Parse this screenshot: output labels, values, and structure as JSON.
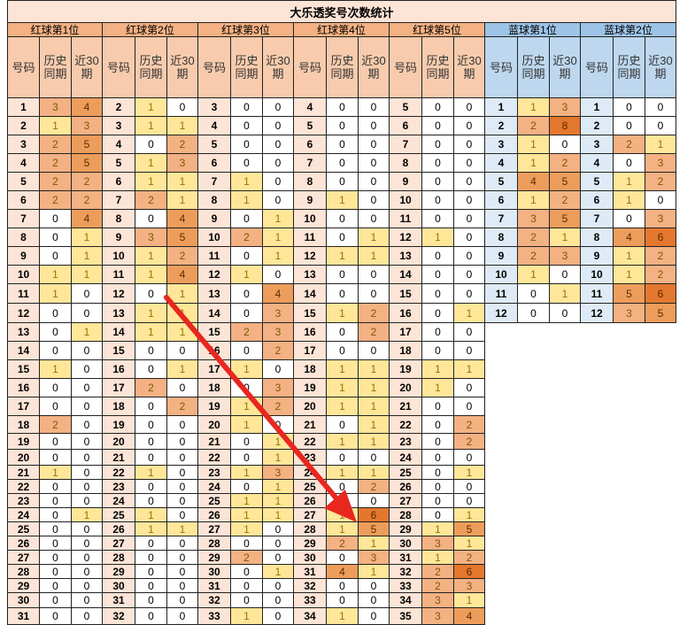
{
  "title": "大乐透奖号次数统计",
  "col_headers": {
    "num": "号码",
    "hist": "历史同期",
    "recent": "近30期"
  },
  "palette": {
    "0": "#ffffff",
    "1": "#ffe699",
    "2": "#f4b183",
    "3": "#f4b183",
    "4": "#ed9d5b",
    "5": "#ed9d5b",
    "6": "#e4772e",
    "8": "#e4772e"
  },
  "groups": [
    {
      "name": "红球第1位",
      "color": "red",
      "rows": [
        [
          "1",
          3,
          4
        ],
        [
          "2",
          1,
          3
        ],
        [
          "3",
          2,
          5
        ],
        [
          "4",
          2,
          5
        ],
        [
          "5",
          2,
          2
        ],
        [
          "6",
          2,
          2
        ],
        [
          "7",
          0,
          4
        ],
        [
          "8",
          0,
          1
        ],
        [
          "9",
          0,
          1
        ],
        [
          "10",
          1,
          1
        ],
        [
          "11",
          1,
          0
        ],
        [
          "12",
          0,
          0
        ],
        [
          "13",
          0,
          1
        ],
        [
          "14",
          0,
          0
        ],
        [
          "15",
          1,
          0
        ],
        [
          "16",
          0,
          0
        ],
        [
          "17",
          0,
          0
        ],
        [
          "18",
          2,
          0
        ],
        [
          "19",
          0,
          0
        ],
        [
          "20",
          0,
          0
        ],
        [
          "21",
          1,
          0
        ],
        [
          "22",
          0,
          0
        ],
        [
          "23",
          0,
          0
        ],
        [
          "24",
          0,
          1
        ],
        [
          "25",
          0,
          0
        ],
        [
          "26",
          0,
          0
        ],
        [
          "27",
          0,
          0
        ],
        [
          "28",
          0,
          0
        ],
        [
          "29",
          0,
          0
        ],
        [
          "30",
          0,
          0
        ],
        [
          "31",
          0,
          0
        ]
      ]
    },
    {
      "name": "红球第2位",
      "color": "red",
      "rows": [
        [
          "2",
          1,
          0
        ],
        [
          "3",
          1,
          1
        ],
        [
          "4",
          0,
          2
        ],
        [
          "5",
          1,
          3
        ],
        [
          "6",
          1,
          1
        ],
        [
          "7",
          2,
          1
        ],
        [
          "8",
          0,
          4
        ],
        [
          "9",
          3,
          5
        ],
        [
          "10",
          1,
          2
        ],
        [
          "11",
          1,
          4
        ],
        [
          "12",
          0,
          1
        ],
        [
          "13",
          1,
          1
        ],
        [
          "14",
          1,
          1
        ],
        [
          "15",
          0,
          0
        ],
        [
          "16",
          0,
          1
        ],
        [
          "17",
          2,
          0
        ],
        [
          "18",
          0,
          2
        ],
        [
          "19",
          0,
          0
        ],
        [
          "20",
          0,
          0
        ],
        [
          "21",
          0,
          0
        ],
        [
          "22",
          1,
          0
        ],
        [
          "23",
          0,
          0
        ],
        [
          "24",
          0,
          0
        ],
        [
          "25",
          1,
          0
        ],
        [
          "26",
          1,
          1
        ],
        [
          "27",
          0,
          0
        ],
        [
          "28",
          0,
          0
        ],
        [
          "29",
          0,
          0
        ],
        [
          "30",
          0,
          0
        ],
        [
          "31",
          0,
          0
        ],
        [
          "32",
          0,
          0
        ]
      ]
    },
    {
      "name": "红球第3位",
      "color": "red",
      "rows": [
        [
          "3",
          0,
          0
        ],
        [
          "4",
          0,
          0
        ],
        [
          "5",
          0,
          0
        ],
        [
          "6",
          0,
          0
        ],
        [
          "7",
          1,
          0
        ],
        [
          "8",
          1,
          0
        ],
        [
          "9",
          0,
          1
        ],
        [
          "10",
          2,
          1
        ],
        [
          "11",
          0,
          1
        ],
        [
          "12",
          1,
          0
        ],
        [
          "13",
          0,
          4
        ],
        [
          "14",
          0,
          3
        ],
        [
          "15",
          2,
          3
        ],
        [
          "16",
          0,
          2
        ],
        [
          "17",
          1,
          0
        ],
        [
          "18",
          0,
          3
        ],
        [
          "19",
          1,
          2
        ],
        [
          "20",
          1,
          0
        ],
        [
          "21",
          0,
          1
        ],
        [
          "22",
          0,
          1
        ],
        [
          "23",
          1,
          3
        ],
        [
          "24",
          0,
          1
        ],
        [
          "25",
          1,
          1
        ],
        [
          "26",
          1,
          1
        ],
        [
          "27",
          1,
          0
        ],
        [
          "28",
          0,
          0
        ],
        [
          "29",
          2,
          0
        ],
        [
          "30",
          0,
          1
        ],
        [
          "31",
          0,
          0
        ],
        [
          "32",
          0,
          0
        ],
        [
          "33",
          1,
          0
        ]
      ]
    },
    {
      "name": "红球第4位",
      "color": "red",
      "rows": [
        [
          "4",
          0,
          0
        ],
        [
          "5",
          0,
          0
        ],
        [
          "6",
          0,
          0
        ],
        [
          "7",
          0,
          0
        ],
        [
          "8",
          0,
          0
        ],
        [
          "9",
          1,
          0
        ],
        [
          "10",
          0,
          0
        ],
        [
          "11",
          0,
          1
        ],
        [
          "12",
          1,
          1
        ],
        [
          "13",
          0,
          0
        ],
        [
          "14",
          0,
          0
        ],
        [
          "15",
          1,
          2
        ],
        [
          "16",
          0,
          2
        ],
        [
          "17",
          0,
          0
        ],
        [
          "18",
          1,
          1
        ],
        [
          "19",
          1,
          1
        ],
        [
          "20",
          1,
          1
        ],
        [
          "21",
          0,
          1
        ],
        [
          "22",
          1,
          1
        ],
        [
          "23",
          0,
          0
        ],
        [
          "24",
          1,
          1
        ],
        [
          "25",
          0,
          2
        ],
        [
          "26",
          0,
          0
        ],
        [
          "27",
          1,
          6
        ],
        [
          "28",
          1,
          5
        ],
        [
          "29",
          2,
          1
        ],
        [
          "30",
          0,
          3
        ],
        [
          "31",
          4,
          1
        ],
        [
          "32",
          0,
          0
        ],
        [
          "33",
          0,
          0
        ],
        [
          "34",
          1,
          0
        ]
      ]
    },
    {
      "name": "红球第5位",
      "color": "red",
      "rows": [
        [
          "5",
          0,
          0
        ],
        [
          "6",
          0,
          0
        ],
        [
          "7",
          0,
          0
        ],
        [
          "8",
          0,
          0
        ],
        [
          "9",
          0,
          0
        ],
        [
          "10",
          0,
          0
        ],
        [
          "11",
          0,
          0
        ],
        [
          "12",
          1,
          0
        ],
        [
          "13",
          0,
          0
        ],
        [
          "14",
          0,
          0
        ],
        [
          "15",
          0,
          0
        ],
        [
          "16",
          0,
          1
        ],
        [
          "17",
          0,
          0
        ],
        [
          "18",
          0,
          0
        ],
        [
          "19",
          1,
          1
        ],
        [
          "20",
          1,
          0
        ],
        [
          "21",
          0,
          0
        ],
        [
          "22",
          0,
          2
        ],
        [
          "23",
          0,
          2
        ],
        [
          "24",
          0,
          0
        ],
        [
          "25",
          0,
          1
        ],
        [
          "26",
          0,
          0
        ],
        [
          "27",
          0,
          0
        ],
        [
          "28",
          0,
          1
        ],
        [
          "29",
          1,
          5
        ],
        [
          "30",
          3,
          1
        ],
        [
          "31",
          1,
          2
        ],
        [
          "32",
          2,
          6
        ],
        [
          "33",
          2,
          3
        ],
        [
          "34",
          3,
          1
        ],
        [
          "35",
          3,
          4
        ]
      ]
    },
    {
      "name": "蓝球第1位",
      "color": "blue",
      "rows": [
        [
          "1",
          1,
          3
        ],
        [
          "2",
          2,
          8
        ],
        [
          "3",
          1,
          0
        ],
        [
          "4",
          1,
          2
        ],
        [
          "5",
          4,
          5
        ],
        [
          "6",
          1,
          2
        ],
        [
          "7",
          3,
          5
        ],
        [
          "8",
          2,
          1
        ],
        [
          "9",
          2,
          3
        ],
        [
          "10",
          1,
          0
        ],
        [
          "11",
          0,
          1
        ],
        [
          "12",
          0,
          0
        ]
      ]
    },
    {
      "name": "蓝球第2位",
      "color": "blue",
      "rows": [
        [
          "1",
          0,
          0
        ],
        [
          "2",
          0,
          0
        ],
        [
          "3",
          2,
          1
        ],
        [
          "4",
          0,
          3
        ],
        [
          "5",
          1,
          2
        ],
        [
          "6",
          1,
          0
        ],
        [
          "7",
          0,
          3
        ],
        [
          "8",
          4,
          6
        ],
        [
          "9",
          1,
          2
        ],
        [
          "10",
          1,
          2
        ],
        [
          "11",
          5,
          6
        ],
        [
          "12",
          3,
          5
        ]
      ]
    }
  ]
}
